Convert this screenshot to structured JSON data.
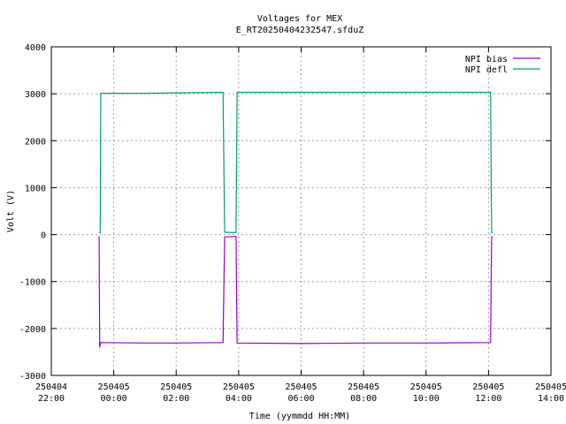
{
  "chart_data": {
    "type": "line",
    "title": "Voltages for MEX",
    "subtitle": "E_RT20250404232547.sfduZ",
    "xlabel": "Time (yymmdd HH:MM)",
    "ylabel": "Volt (V)",
    "xlim": [
      "2025-04-04 22:00",
      "2025-04-05 14:00"
    ],
    "ylim": [
      -3000,
      4000
    ],
    "yticks": [
      -3000,
      -2000,
      -1000,
      0,
      1000,
      2000,
      3000,
      4000
    ],
    "xticks": [
      {
        "date": "250404",
        "time": "22:00",
        "value": "2025-04-04 22:00"
      },
      {
        "date": "250405",
        "time": "00:00",
        "value": "2025-04-05 00:00"
      },
      {
        "date": "250405",
        "time": "02:00",
        "value": "2025-04-05 02:00"
      },
      {
        "date": "250405",
        "time": "04:00",
        "value": "2025-04-05 04:00"
      },
      {
        "date": "250405",
        "time": "06:00",
        "value": "2025-04-05 06:00"
      },
      {
        "date": "250405",
        "time": "08:00",
        "value": "2025-04-05 08:00"
      },
      {
        "date": "250405",
        "time": "10:00",
        "value": "2025-04-05 10:00"
      },
      {
        "date": "250405",
        "time": "12:00",
        "value": "2025-04-05 12:00"
      },
      {
        "date": "250405",
        "time": "14:00",
        "value": "2025-04-05 14:00"
      }
    ],
    "grid": true,
    "legend_position": "top-right",
    "series": [
      {
        "name": "NPI bias",
        "color": "#9400d3",
        "points": [
          [
            "2025-04-04 23:32",
            -30
          ],
          [
            "2025-04-04 23:33",
            -2400
          ],
          [
            "2025-04-04 23:35",
            -2300
          ],
          [
            "2025-04-05 01:00",
            -2310
          ],
          [
            "2025-04-05 02:00",
            -2310
          ],
          [
            "2025-04-05 03:30",
            -2300
          ],
          [
            "2025-04-05 03:33",
            -50
          ],
          [
            "2025-04-05 03:55",
            -40
          ],
          [
            "2025-04-05 03:57",
            -2310
          ],
          [
            "2025-04-05 06:00",
            -2320
          ],
          [
            "2025-04-05 08:00",
            -2310
          ],
          [
            "2025-04-05 10:00",
            -2310
          ],
          [
            "2025-04-05 12:04",
            -2300
          ],
          [
            "2025-04-05 12:06",
            -50
          ],
          [
            "2025-04-05 12:08",
            -40
          ]
        ]
      },
      {
        "name": "NPI defl",
        "color": "#009e73",
        "points": [
          [
            "2025-04-04 23:32",
            40
          ],
          [
            "2025-04-04 23:34",
            40
          ],
          [
            "2025-04-04 23:35",
            3010
          ],
          [
            "2025-04-05 01:00",
            3010
          ],
          [
            "2025-04-05 02:00",
            3020
          ],
          [
            "2025-04-05 03:30",
            3030
          ],
          [
            "2025-04-05 03:33",
            50
          ],
          [
            "2025-04-05 03:55",
            40
          ],
          [
            "2025-04-05 03:57",
            3030
          ],
          [
            "2025-04-05 06:00",
            3030
          ],
          [
            "2025-04-05 08:00",
            3030
          ],
          [
            "2025-04-05 10:00",
            3030
          ],
          [
            "2025-04-05 12:04",
            3030
          ],
          [
            "2025-04-05 12:06",
            40
          ],
          [
            "2025-04-05 12:08",
            40
          ]
        ]
      }
    ]
  }
}
